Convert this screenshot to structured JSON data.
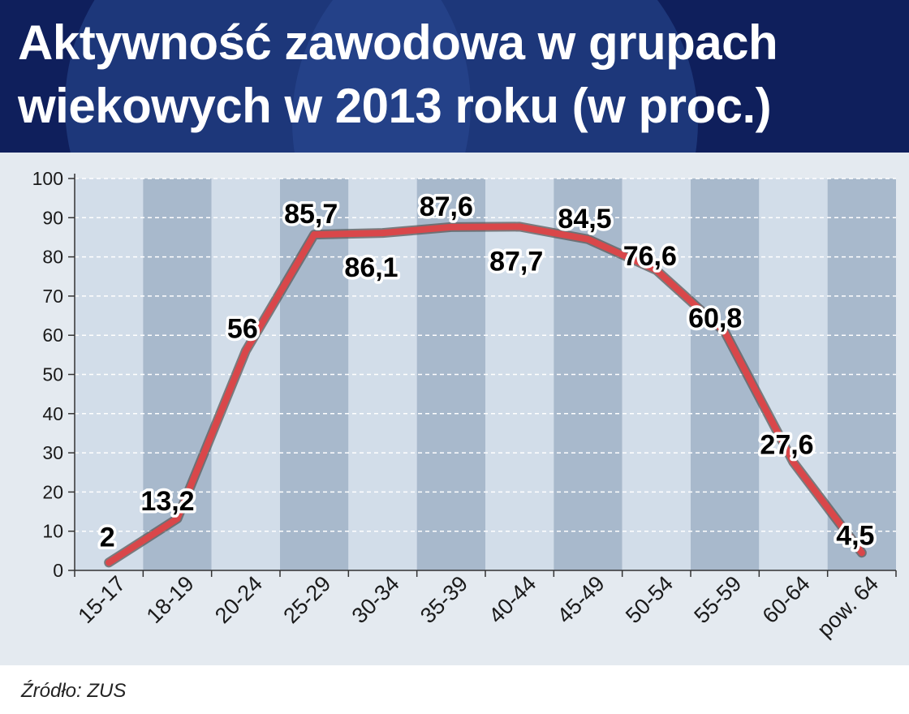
{
  "title": "Aktywność zawodowa w grupach wiekowych w 2013 roku (w proc.)",
  "source": "Źródło: ZUS",
  "colors": {
    "header_bg": "#0f1f5c",
    "header_circle": "#2a4a94",
    "plot_band_light": "#d2dde9",
    "plot_band_dark": "#a8b9cc",
    "line": "#d9474a",
    "line_outline": "#5a5a5a",
    "axis": "#333333",
    "gridline": "#ffffff"
  },
  "chart_data": {
    "type": "line",
    "title": "Aktywność zawodowa w grupach wiekowych w 2013 roku (w proc.)",
    "categories": [
      "15-17",
      "18-19",
      "20-24",
      "25-29",
      "30-34",
      "35-39",
      "40-44",
      "45-49",
      "50-54",
      "55-59",
      "60-64",
      "pow. 64"
    ],
    "series": [
      {
        "values": [
          2,
          13.2,
          56,
          85.7,
          86.1,
          87.6,
          87.7,
          84.5,
          76.6,
          60.8,
          27.6,
          4.5
        ],
        "labels": [
          "2",
          "13,2",
          "56",
          "85,7",
          "86,1",
          "87,6",
          "87,7",
          "84,5",
          "76,6",
          "60,8",
          "27,6",
          "4,5"
        ]
      }
    ],
    "ylim": [
      0,
      100
    ],
    "yticks": [
      0,
      10,
      20,
      30,
      40,
      50,
      60,
      70,
      80,
      90,
      100
    ],
    "xlabel": "",
    "ylabel": "",
    "grid": "horizontal dashed",
    "legend": "none"
  }
}
